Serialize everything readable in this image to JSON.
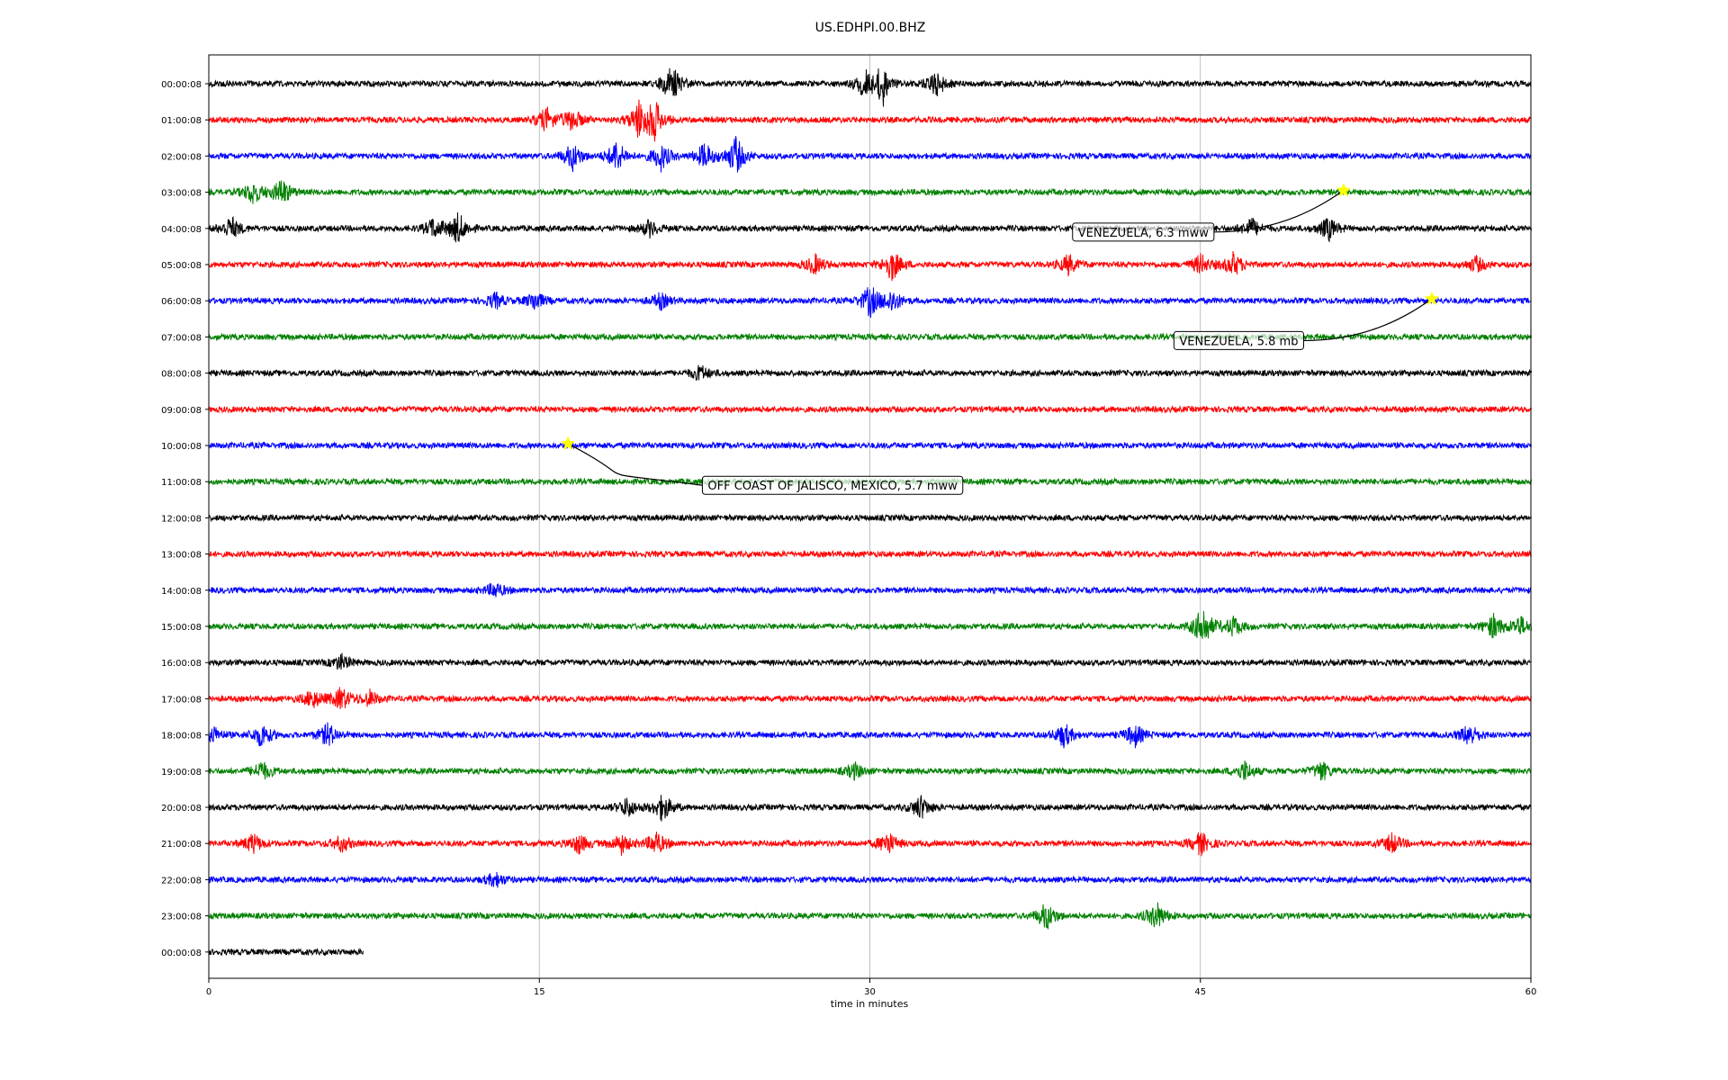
{
  "chart_data": {
    "type": "line",
    "title": "US.EDHPI.00.BHZ",
    "xlabel": "time in minutes",
    "ylabel": "",
    "xlim": [
      0,
      60
    ],
    "x_ticks": [
      "0",
      "15",
      "30",
      "45",
      "60"
    ],
    "x_tick_values": [
      0,
      15,
      30,
      45,
      60
    ],
    "grid": "vertical",
    "line_colors": [
      "#000000",
      "#ff0000",
      "#0000ff",
      "#008000"
    ],
    "star_color": "#ffff00",
    "rows": [
      {
        "label": "00:00:08",
        "end_min": 60,
        "events": [
          [
            21,
            1.0
          ],
          [
            29.8,
            0.8
          ],
          [
            30.6,
            1.0
          ],
          [
            33,
            0.7
          ]
        ]
      },
      {
        "label": "01:00:08",
        "end_min": 60,
        "events": [
          [
            15.3,
            0.6
          ],
          [
            16.5,
            0.6
          ],
          [
            19.5,
            0.9
          ],
          [
            20.2,
            1.0
          ]
        ]
      },
      {
        "label": "02:00:08",
        "end_min": 60,
        "events": [
          [
            16.5,
            0.7
          ],
          [
            18.5,
            0.8
          ],
          [
            20.5,
            0.7
          ],
          [
            22.5,
            0.7
          ],
          [
            23.9,
            1.0
          ]
        ]
      },
      {
        "label": "03:00:08",
        "end_min": 60,
        "events": [
          [
            2.0,
            0.6
          ],
          [
            3.3,
            0.7
          ]
        ]
      },
      {
        "label": "04:00:08",
        "end_min": 60,
        "events": [
          [
            1.0,
            0.6
          ],
          [
            10.2,
            0.5
          ],
          [
            11.3,
            0.8
          ],
          [
            20,
            0.4
          ],
          [
            47.3,
            0.5
          ],
          [
            50.8,
            0.6
          ]
        ]
      },
      {
        "label": "05:00:08",
        "end_min": 60,
        "events": [
          [
            27.5,
            0.5
          ],
          [
            31,
            0.8
          ],
          [
            39,
            0.5
          ],
          [
            45,
            0.5
          ],
          [
            46.5,
            0.6
          ],
          [
            57.5,
            0.4
          ]
        ]
      },
      {
        "label": "06:00:08",
        "end_min": 60,
        "events": [
          [
            13,
            0.4
          ],
          [
            14.8,
            0.5
          ],
          [
            20.5,
            0.4
          ],
          [
            30,
            0.8
          ],
          [
            31,
            0.6
          ]
        ]
      },
      {
        "label": "07:00:08",
        "end_min": 60,
        "events": []
      },
      {
        "label": "08:00:08",
        "end_min": 60,
        "events": [
          [
            22.3,
            0.4
          ]
        ]
      },
      {
        "label": "09:00:08",
        "end_min": 60,
        "events": []
      },
      {
        "label": "10:00:08",
        "end_min": 60,
        "events": []
      },
      {
        "label": "11:00:08",
        "end_min": 60,
        "events": []
      },
      {
        "label": "12:00:08",
        "end_min": 60,
        "events": []
      },
      {
        "label": "13:00:08",
        "end_min": 60,
        "events": []
      },
      {
        "label": "14:00:08",
        "end_min": 60,
        "events": [
          [
            13,
            0.4
          ]
        ]
      },
      {
        "label": "15:00:08",
        "end_min": 60,
        "events": [
          [
            45.1,
            1.1
          ],
          [
            46.5,
            0.5
          ],
          [
            58.3,
            0.6
          ],
          [
            59.5,
            0.5
          ]
        ]
      },
      {
        "label": "16:00:08",
        "end_min": 60,
        "events": [
          [
            6,
            0.4
          ]
        ]
      },
      {
        "label": "17:00:08",
        "end_min": 60,
        "events": [
          [
            4.7,
            0.5
          ],
          [
            6,
            0.6
          ],
          [
            7.3,
            0.4
          ]
        ]
      },
      {
        "label": "18:00:08",
        "end_min": 60,
        "events": [
          [
            0.2,
            0.4
          ],
          [
            2.4,
            0.6
          ],
          [
            5.4,
            0.6
          ],
          [
            38.8,
            0.6
          ],
          [
            42,
            0.6
          ],
          [
            57.2,
            0.6
          ]
        ]
      },
      {
        "label": "19:00:08",
        "end_min": 60,
        "events": [
          [
            2.4,
            0.5
          ],
          [
            29.3,
            0.4
          ],
          [
            47,
            0.5
          ],
          [
            50.5,
            0.5
          ]
        ]
      },
      {
        "label": "20:00:08",
        "end_min": 60,
        "events": [
          [
            19,
            0.5
          ],
          [
            20.6,
            0.7
          ],
          [
            32.3,
            0.6
          ]
        ]
      },
      {
        "label": "21:00:08",
        "end_min": 60,
        "events": [
          [
            2.0,
            0.5
          ],
          [
            6,
            0.4
          ],
          [
            16.8,
            0.5
          ],
          [
            18.7,
            0.5
          ],
          [
            20.3,
            0.6
          ],
          [
            30.8,
            0.6
          ],
          [
            45,
            0.6
          ],
          [
            53.7,
            0.5
          ]
        ]
      },
      {
        "label": "22:00:08",
        "end_min": 60,
        "events": [
          [
            13,
            0.4
          ]
        ]
      },
      {
        "label": "23:00:08",
        "end_min": 60,
        "events": [
          [
            38,
            0.7
          ],
          [
            43,
            0.7
          ]
        ]
      },
      {
        "label": "00:00:08",
        "end_min": 7.0,
        "events": []
      }
    ],
    "annotations": [
      {
        "text": "VENEZUELA, 6.3 mww",
        "row": 3,
        "minute": 51.5,
        "label_row": 4.1,
        "label_minute": 39.2
      },
      {
        "text": "VENEZUELA, 5.8 mb",
        "row": 6,
        "minute": 55.5,
        "label_row": 7.1,
        "label_minute": 43.8
      },
      {
        "text": "OFF COAST OF JALISCO, MEXICO, 5.7 mww",
        "row": 10,
        "minute": 16.3,
        "label_row": 11.1,
        "label_minute": 22.4
      }
    ]
  }
}
